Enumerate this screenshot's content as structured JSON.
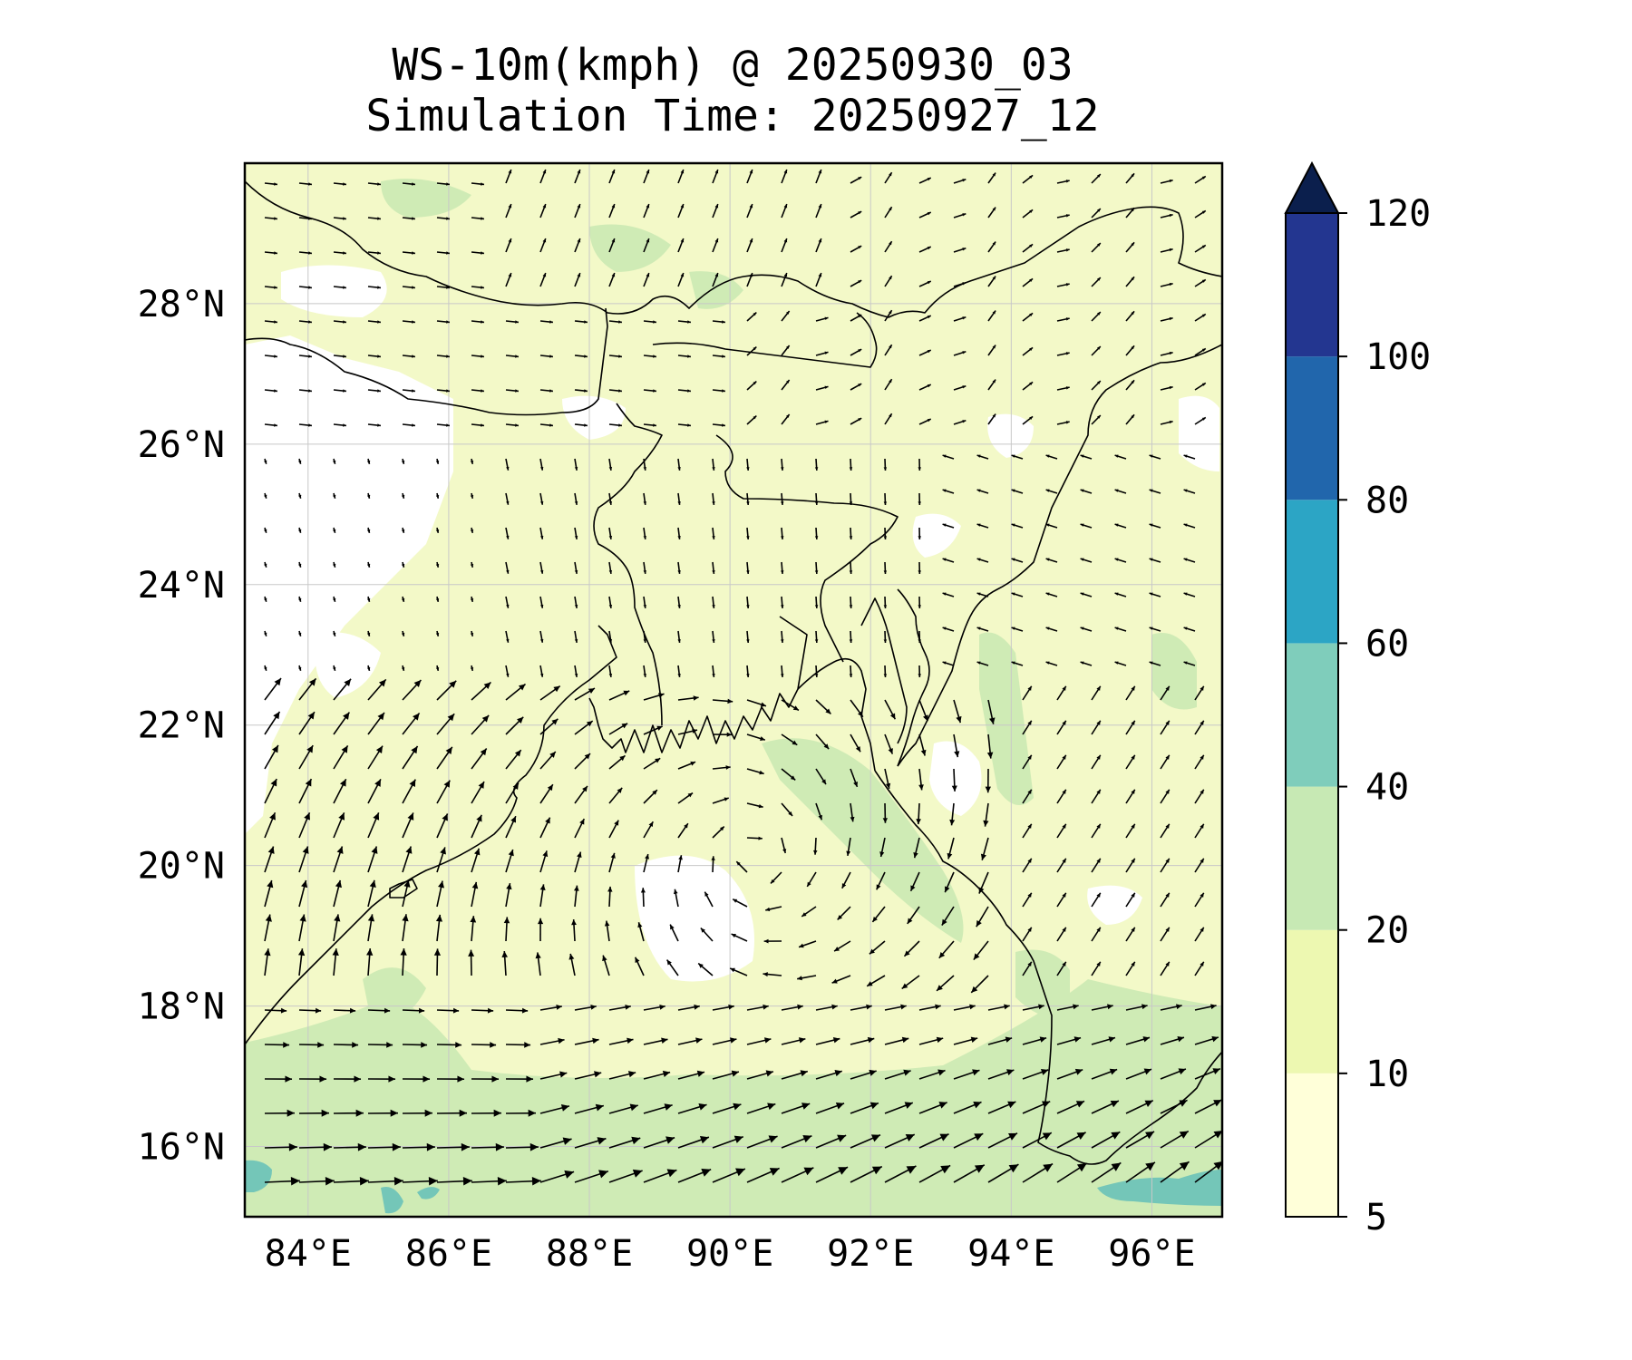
{
  "title": "WS-10m(kmph) @ 20250930_03",
  "subtitle": "Simulation Time: 20250927_12",
  "map": {
    "lon_range": [
      83.1,
      97.0
    ],
    "lat_range": [
      15.0,
      30.0
    ],
    "lon_ticks": [
      84,
      86,
      88,
      90,
      92,
      94,
      96
    ],
    "lat_ticks": [
      16,
      18,
      20,
      22,
      24,
      26,
      28
    ],
    "lon_tick_labels": [
      "84°E",
      "86°E",
      "88°E",
      "90°E",
      "92°E",
      "94°E",
      "96°E"
    ],
    "lat_tick_labels": [
      "16°N",
      "18°N",
      "20°N",
      "22°N",
      "24°N",
      "26°N",
      "28°N"
    ],
    "gridlines": true,
    "background_field": "10 m wind speed (filled contours)",
    "vector_field": "10 m wind direction (quiver arrows)"
  },
  "colorbar": {
    "levels": [
      5,
      10,
      20,
      40,
      60,
      80,
      100,
      120
    ],
    "tick_labels": [
      "5",
      "10",
      "20",
      "40",
      "60",
      "80",
      "100",
      "120"
    ],
    "colors": [
      "#ffffd9",
      "#edf8b1",
      "#c7e9b4",
      "#7fcdbb",
      "#2ca5c5",
      "#2166ac",
      "#233690",
      "#081d58"
    ],
    "extend": "max",
    "extend_color": "#0b1f4d"
  },
  "colors": {
    "land_white": "#ffffff",
    "light": "#f2f9c6",
    "green": "#cfebb5",
    "teal": "#74c6b8",
    "coast": "#000000",
    "arrow": "#000000",
    "grid": "#c8c8c8"
  }
}
